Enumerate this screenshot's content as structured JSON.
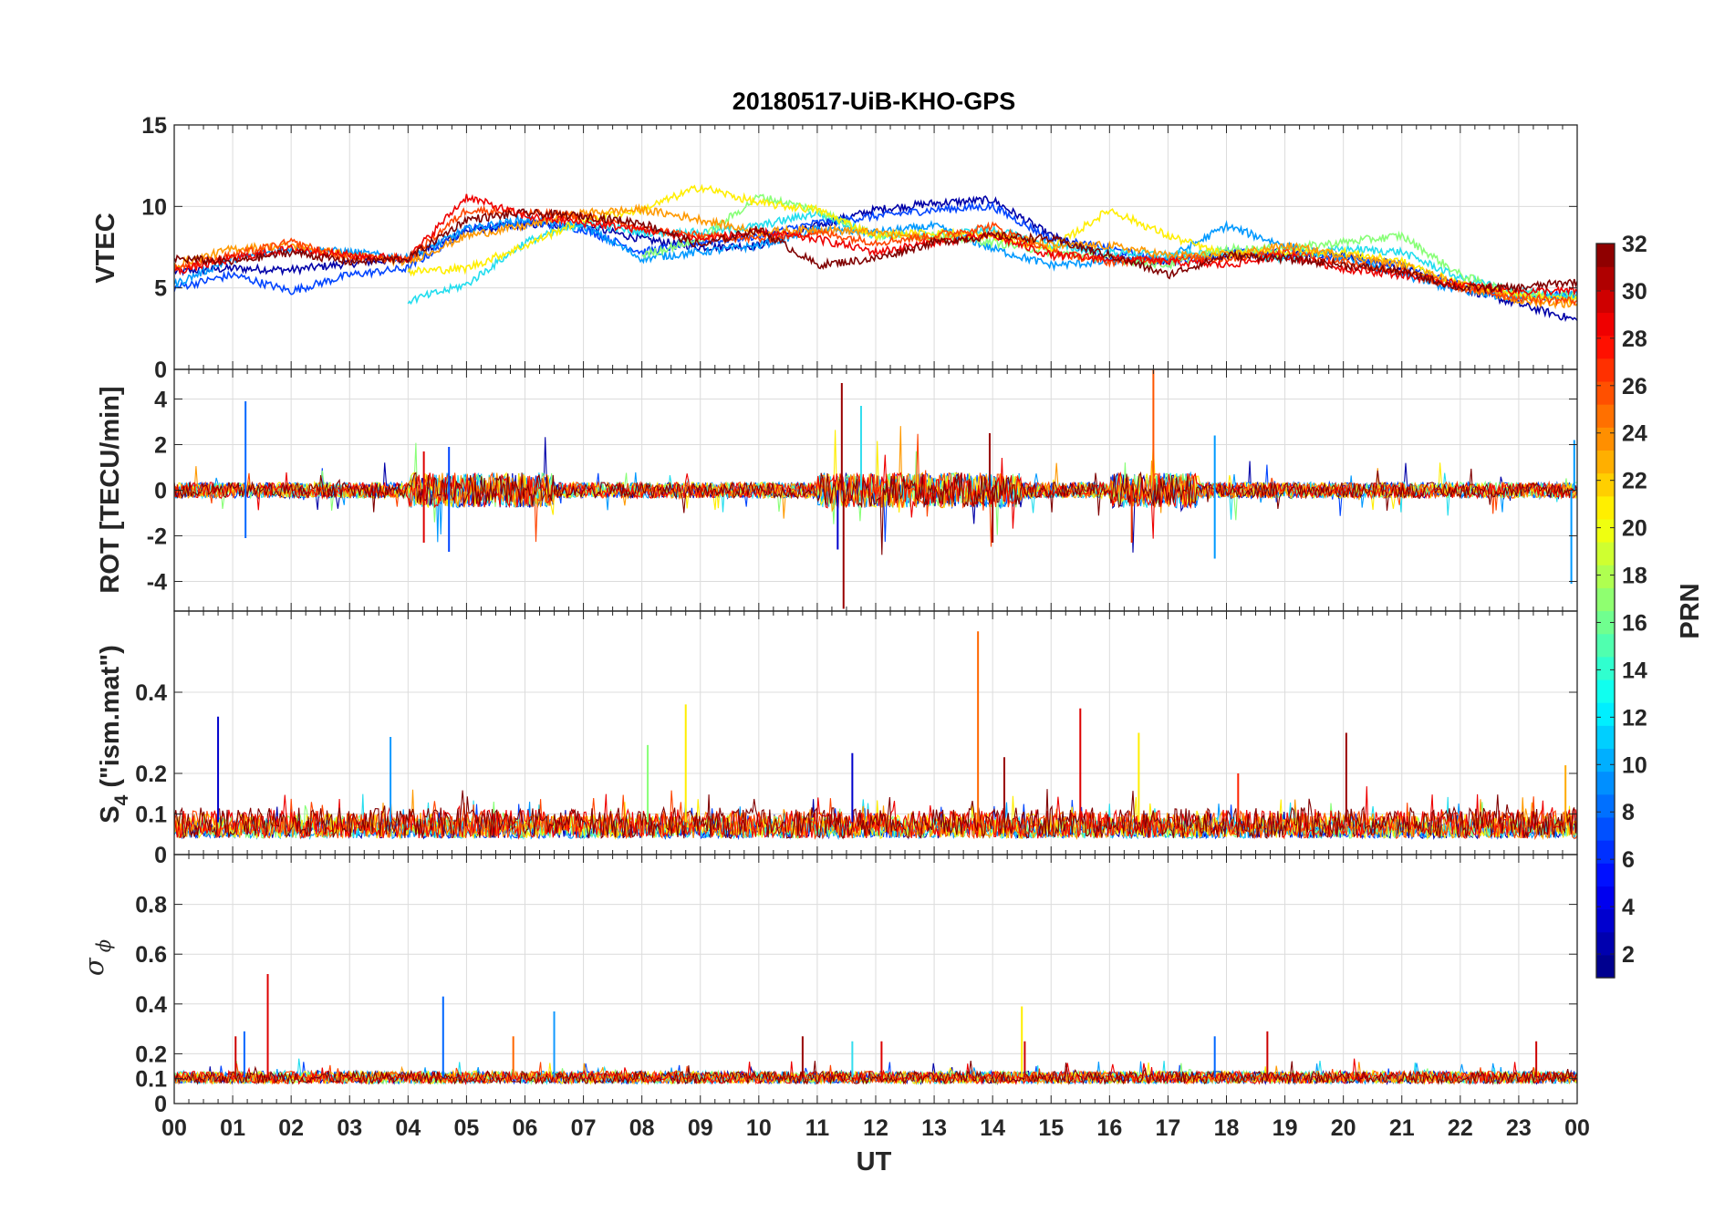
{
  "figure_title": "20180517-UiB-KHO-GPS",
  "x_axis": {
    "label": "UT",
    "tick_labels": [
      "00",
      "01",
      "02",
      "03",
      "04",
      "05",
      "06",
      "07",
      "08",
      "09",
      "10",
      "11",
      "12",
      "13",
      "14",
      "15",
      "16",
      "17",
      "18",
      "19",
      "20",
      "21",
      "22",
      "23",
      "00"
    ]
  },
  "panels": [
    {
      "ylabel": "VTEC",
      "ytick_labels": [
        "0",
        "5",
        "10",
        "15"
      ],
      "ylim": [
        0,
        15
      ]
    },
    {
      "ylabel": "ROT [TECU/min]",
      "ytick_labels": [
        "-4",
        "-2",
        "0",
        "2",
        "4"
      ],
      "ylim": [
        -5.3,
        5.3
      ]
    },
    {
      "ylabel_main": "S",
      "ylabel_sub": "4",
      "ylabel_rest": " (\"ism.mat\")",
      "ytick_labels": [
        "0",
        "0.1",
        "0.2",
        "0.4"
      ],
      "ylim": [
        0,
        0.6
      ]
    },
    {
      "ylabel_symbol": "σ",
      "ylabel_sub": "ϕ",
      "ytick_labels": [
        "0",
        "0.1",
        "0.2",
        "0.4",
        "0.6",
        "0.8"
      ],
      "ylim": [
        0,
        1
      ]
    }
  ],
  "colorbar": {
    "label": "PRN",
    "tick_labels": [
      "2",
      "4",
      "6",
      "8",
      "10",
      "12",
      "14",
      "16",
      "18",
      "20",
      "22",
      "24",
      "26",
      "28",
      "30",
      "32"
    ],
    "range": [
      1,
      32
    ],
    "colormap": "jet"
  },
  "chart_data": [
    {
      "type": "line",
      "title": "20180517-UiB-KHO-GPS",
      "xlabel": "UT",
      "ylabel": "VTEC",
      "xlim": [
        0,
        24
      ],
      "ylim": [
        0,
        15
      ],
      "grid": true,
      "series_note_values_are_approx": true,
      "series": [
        {
          "prn": 2,
          "color": "#0000a8",
          "x": [
            0,
            1,
            2,
            3,
            4,
            5,
            6,
            7,
            8,
            9,
            10,
            11,
            12,
            13,
            14,
            15,
            16,
            17,
            18,
            19,
            20,
            21,
            22,
            23,
            24
          ],
          "y": [
            6.0,
            6.2,
            6.1,
            6.5,
            6.8,
            8.5,
            8.9,
            8.8,
            8.0,
            7.5,
            7.6,
            8.8,
            9.8,
            10.2,
            10.4,
            8.2,
            6.8,
            6.6,
            7.0,
            7.2,
            7.0,
            6.2,
            5.0,
            4.0,
            3.0
          ]
        },
        {
          "prn": 5,
          "color": "#0044ff",
          "x": [
            0,
            1,
            2,
            3,
            4,
            5,
            6,
            7,
            8,
            9,
            10,
            11,
            12,
            13,
            14,
            15,
            16,
            17,
            18,
            19,
            20,
            21,
            22,
            23,
            24
          ],
          "y": [
            5.0,
            5.8,
            4.8,
            5.8,
            6.2,
            8.6,
            9.0,
            8.6,
            7.2,
            7.8,
            8.2,
            9.0,
            9.4,
            9.8,
            10.0,
            8.0,
            7.4,
            6.6,
            7.2,
            7.0,
            7.0,
            6.4,
            5.2,
            4.4,
            4.6
          ]
        },
        {
          "prn": 9,
          "color": "#0099ff",
          "x": [
            0,
            1,
            2,
            3,
            4,
            5,
            6,
            7,
            8,
            9,
            10,
            11,
            12,
            13,
            14,
            15,
            16,
            17,
            18,
            19,
            20,
            21,
            22,
            23,
            24
          ],
          "y": [
            5.2,
            6.8,
            7.4,
            7.2,
            6.8,
            8.6,
            9.2,
            8.8,
            6.8,
            7.2,
            7.6,
            8.6,
            8.4,
            8.8,
            7.4,
            6.4,
            6.6,
            6.8,
            8.8,
            7.6,
            6.8,
            5.8,
            4.8,
            4.4,
            4.6
          ]
        },
        {
          "prn": 13,
          "color": "#22ddee",
          "x": [
            4,
            5,
            6,
            7,
            8,
            9,
            10,
            11,
            12,
            13,
            14,
            15,
            16,
            17,
            18,
            19,
            20,
            21,
            22,
            23,
            24
          ],
          "y": [
            4.2,
            5.2,
            7.8,
            9.0,
            8.4,
            8.4,
            8.8,
            9.6,
            8.2,
            8.2,
            8.6,
            7.6,
            7.2,
            7.0,
            7.2,
            6.8,
            7.4,
            7.2,
            5.6,
            4.8,
            4.4
          ]
        },
        {
          "prn": 16,
          "color": "#88ff77",
          "x": [
            8,
            9,
            10,
            11,
            12,
            13,
            14,
            15,
            16,
            17,
            18,
            19,
            20,
            21,
            22,
            23,
            24
          ],
          "y": [
            7.0,
            8.0,
            10.6,
            9.8,
            8.2,
            8.2,
            7.8,
            7.2,
            6.8,
            6.4,
            7.4,
            7.4,
            7.8,
            8.2,
            5.8,
            4.6,
            4.6
          ]
        },
        {
          "prn": 20,
          "color": "#ffee00",
          "x": [
            4,
            5,
            6,
            7,
            8,
            9,
            10,
            11,
            12,
            13,
            14,
            15,
            16,
            17,
            18,
            19,
            20,
            21,
            22,
            23,
            24
          ],
          "y": [
            6.0,
            6.2,
            7.6,
            9.2,
            9.8,
            11.2,
            10.2,
            9.8,
            8.2,
            8.4,
            8.2,
            7.4,
            9.8,
            8.2,
            7.0,
            7.2,
            7.2,
            6.6,
            5.2,
            4.6,
            4.2
          ]
        },
        {
          "prn": 23,
          "color": "#ff9900",
          "x": [
            0,
            1,
            2,
            3,
            4,
            5,
            6,
            7,
            8,
            9,
            10,
            11,
            12,
            13,
            14,
            15,
            16,
            17,
            18,
            19,
            20,
            21,
            22,
            23,
            24
          ],
          "y": [
            6.4,
            7.4,
            7.6,
            7.0,
            6.6,
            8.2,
            8.8,
            9.6,
            9.8,
            9.2,
            8.4,
            8.6,
            8.4,
            8.0,
            8.4,
            7.6,
            7.6,
            7.0,
            7.0,
            7.6,
            7.0,
            6.4,
            5.2,
            4.2,
            4.0
          ]
        },
        {
          "prn": 26,
          "color": "#ff4400",
          "x": [
            0,
            1,
            2,
            3,
            4,
            5,
            6,
            7,
            8,
            9,
            10,
            11,
            12,
            13,
            14,
            15,
            16,
            17,
            18,
            19,
            20,
            21,
            22,
            23,
            24
          ],
          "y": [
            6.2,
            7.0,
            7.8,
            6.8,
            6.8,
            9.8,
            9.6,
            9.4,
            8.6,
            8.2,
            8.0,
            8.4,
            7.8,
            8.2,
            8.8,
            7.2,
            6.6,
            6.8,
            6.8,
            7.2,
            6.6,
            6.0,
            5.0,
            4.4,
            4.2
          ]
        },
        {
          "prn": 29,
          "color": "#ee0000",
          "x": [
            0,
            1,
            2,
            3,
            4,
            5,
            6,
            7,
            8,
            9,
            10,
            11,
            12,
            13,
            14,
            15,
            16,
            17,
            18,
            19,
            20,
            21,
            22,
            23,
            24
          ],
          "y": [
            6.0,
            6.8,
            7.4,
            7.0,
            6.8,
            10.6,
            9.4,
            9.0,
            8.6,
            8.0,
            8.4,
            8.0,
            7.2,
            7.8,
            8.2,
            7.0,
            6.8,
            6.6,
            6.4,
            7.0,
            6.2,
            5.8,
            5.2,
            4.8,
            4.8
          ]
        },
        {
          "prn": 32,
          "color": "#800000",
          "x": [
            0,
            1,
            2,
            3,
            4,
            5,
            6,
            7,
            8,
            9,
            10,
            11,
            12,
            13,
            14,
            15,
            16,
            17,
            18,
            19,
            20,
            21,
            22,
            23,
            24
          ],
          "y": [
            6.8,
            6.6,
            7.2,
            6.6,
            6.8,
            9.2,
            9.6,
            9.4,
            9.0,
            7.6,
            8.6,
            6.4,
            6.8,
            7.8,
            8.2,
            8.0,
            7.0,
            5.8,
            7.0,
            6.8,
            6.4,
            6.0,
            5.0,
            5.0,
            5.4
          ]
        }
      ]
    },
    {
      "type": "line",
      "ylabel": "ROT [TECU/min]",
      "xlim": [
        0,
        24
      ],
      "ylim": [
        -5.3,
        5.3
      ],
      "grid": true,
      "baseline": 0,
      "spikes": [
        {
          "x": 1.22,
          "y": 3.9,
          "color": "#0066ff"
        },
        {
          "x": 1.22,
          "y": -2.1,
          "color": "#0066ff"
        },
        {
          "x": 4.27,
          "y": -2.3,
          "color": "#dd0000"
        },
        {
          "x": 4.27,
          "y": 1.7,
          "color": "#dd0000"
        },
        {
          "x": 4.7,
          "y": -2.7,
          "color": "#0044ff"
        },
        {
          "x": 4.7,
          "y": 1.9,
          "color": "#0044ff"
        },
        {
          "x": 11.42,
          "y": 4.7,
          "color": "#990000"
        },
        {
          "x": 11.45,
          "y": -5.2,
          "color": "#990000"
        },
        {
          "x": 11.35,
          "y": -2.6,
          "color": "#0000cc"
        },
        {
          "x": 11.75,
          "y": 3.7,
          "color": "#33ddee"
        },
        {
          "x": 13.95,
          "y": 2.5,
          "color": "#990000"
        },
        {
          "x": 14.0,
          "y": -2.3,
          "color": "#990000"
        },
        {
          "x": 16.38,
          "y": -2.3,
          "color": "#ee3300"
        },
        {
          "x": 16.75,
          "y": 5.3,
          "color": "#ff5500"
        },
        {
          "x": 17.8,
          "y": -3.0,
          "color": "#0099ff"
        },
        {
          "x": 17.8,
          "y": 2.4,
          "color": "#0099ff"
        },
        {
          "x": 23.9,
          "y": -4.1,
          "color": "#0099ff"
        },
        {
          "x": 23.95,
          "y": 2.2,
          "color": "#0099ff"
        }
      ]
    },
    {
      "type": "line",
      "ylabel": "S4 (\"ism.mat\")",
      "xlim": [
        0,
        24
      ],
      "ylim": [
        0,
        0.6
      ],
      "grid": true,
      "baseline_range": [
        0.04,
        0.12
      ],
      "spikes": [
        {
          "x": 0.75,
          "y": 0.34,
          "color": "#0000cc"
        },
        {
          "x": 3.7,
          "y": 0.29,
          "color": "#1199ff"
        },
        {
          "x": 8.75,
          "y": 0.37,
          "color": "#ffee00"
        },
        {
          "x": 8.1,
          "y": 0.27,
          "color": "#88ff77"
        },
        {
          "x": 11.6,
          "y": 0.25,
          "color": "#0000cc"
        },
        {
          "x": 13.75,
          "y": 0.55,
          "color": "#ff6600"
        },
        {
          "x": 14.2,
          "y": 0.24,
          "color": "#990000"
        },
        {
          "x": 15.5,
          "y": 0.36,
          "color": "#dd0000"
        },
        {
          "x": 16.5,
          "y": 0.3,
          "color": "#ffee00"
        },
        {
          "x": 18.2,
          "y": 0.2,
          "color": "#ff2200"
        },
        {
          "x": 20.05,
          "y": 0.3,
          "color": "#990000"
        },
        {
          "x": 23.8,
          "y": 0.22,
          "color": "#ffaa00"
        }
      ]
    },
    {
      "type": "line",
      "ylabel": "σϕ",
      "xlim": [
        0,
        24
      ],
      "ylim": [
        0,
        1
      ],
      "grid": true,
      "baseline_range": [
        0.08,
        0.13
      ],
      "spikes": [
        {
          "x": 1.05,
          "y": 0.27,
          "color": "#cc0000"
        },
        {
          "x": 1.2,
          "y": 0.29,
          "color": "#0066ff"
        },
        {
          "x": 1.6,
          "y": 0.52,
          "color": "#dd0000"
        },
        {
          "x": 4.6,
          "y": 0.43,
          "color": "#0066ff"
        },
        {
          "x": 5.8,
          "y": 0.27,
          "color": "#ff6600"
        },
        {
          "x": 6.5,
          "y": 0.37,
          "color": "#1199ff"
        },
        {
          "x": 10.75,
          "y": 0.27,
          "color": "#990000"
        },
        {
          "x": 11.6,
          "y": 0.25,
          "color": "#33ddee"
        },
        {
          "x": 12.1,
          "y": 0.25,
          "color": "#dd0000"
        },
        {
          "x": 14.5,
          "y": 0.39,
          "color": "#ffee00"
        },
        {
          "x": 14.55,
          "y": 0.25,
          "color": "#cc0000"
        },
        {
          "x": 17.8,
          "y": 0.27,
          "color": "#0066ff"
        },
        {
          "x": 18.7,
          "y": 0.29,
          "color": "#cc0000"
        },
        {
          "x": 23.3,
          "y": 0.25,
          "color": "#cc0000"
        }
      ]
    }
  ]
}
